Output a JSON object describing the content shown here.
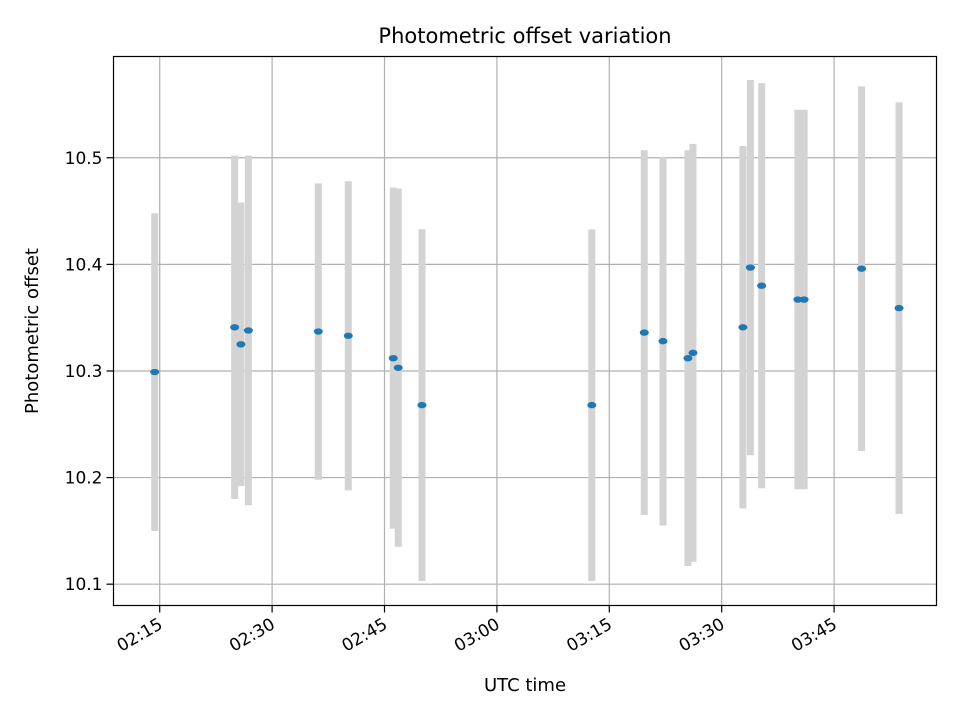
{
  "chart_data": {
    "type": "scatter",
    "title": "Photometric offset variation",
    "xlabel": "UTC time",
    "ylabel": "Photometric offset",
    "x_ticks": [
      "02:15",
      "02:30",
      "02:45",
      "03:00",
      "03:15",
      "03:30",
      "03:45"
    ],
    "y_ticks": [
      "10.1",
      "10.2",
      "10.3",
      "10.4",
      "10.5"
    ],
    "xlim": [
      "02:08:50",
      "03:58:40"
    ],
    "ylim": [
      10.08,
      10.595
    ],
    "grid": true,
    "colors": {
      "marker": "#1f77b4",
      "errorbar": "#d3d3d3",
      "grid": "#b0b0b0"
    },
    "points": [
      {
        "t": "02:14:20",
        "y": 10.299,
        "err": 0.149
      },
      {
        "t": "02:25:00",
        "y": 10.341,
        "err": 0.161
      },
      {
        "t": "02:25:50",
        "y": 10.325,
        "err": 0.133
      },
      {
        "t": "02:26:50",
        "y": 10.338,
        "err": 0.164
      },
      {
        "t": "02:36:10",
        "y": 10.337,
        "err": 0.139
      },
      {
        "t": "02:40:10",
        "y": 10.333,
        "err": 0.145
      },
      {
        "t": "02:46:10",
        "y": 10.312,
        "err": 0.16
      },
      {
        "t": "02:46:50",
        "y": 10.303,
        "err": 0.168
      },
      {
        "t": "02:50:00",
        "y": 10.268,
        "err": 0.165
      },
      {
        "t": "03:12:40",
        "y": 10.268,
        "err": 0.165
      },
      {
        "t": "03:19:40",
        "y": 10.336,
        "err": 0.171
      },
      {
        "t": "03:22:10",
        "y": 10.328,
        "err": 0.173
      },
      {
        "t": "03:25:30",
        "y": 10.312,
        "err": 0.195
      },
      {
        "t": "03:26:10",
        "y": 10.317,
        "err": 0.196
      },
      {
        "t": "03:32:50",
        "y": 10.341,
        "err": 0.17
      },
      {
        "t": "03:33:50",
        "y": 10.397,
        "err": 0.176
      },
      {
        "t": "03:35:20",
        "y": 10.38,
        "err": 0.19
      },
      {
        "t": "03:40:10",
        "y": 10.367,
        "err": 0.178
      },
      {
        "t": "03:41:00",
        "y": 10.367,
        "err": 0.178
      },
      {
        "t": "03:48:40",
        "y": 10.396,
        "err": 0.171
      },
      {
        "t": "03:53:40",
        "y": 10.359,
        "err": 0.193
      }
    ]
  }
}
